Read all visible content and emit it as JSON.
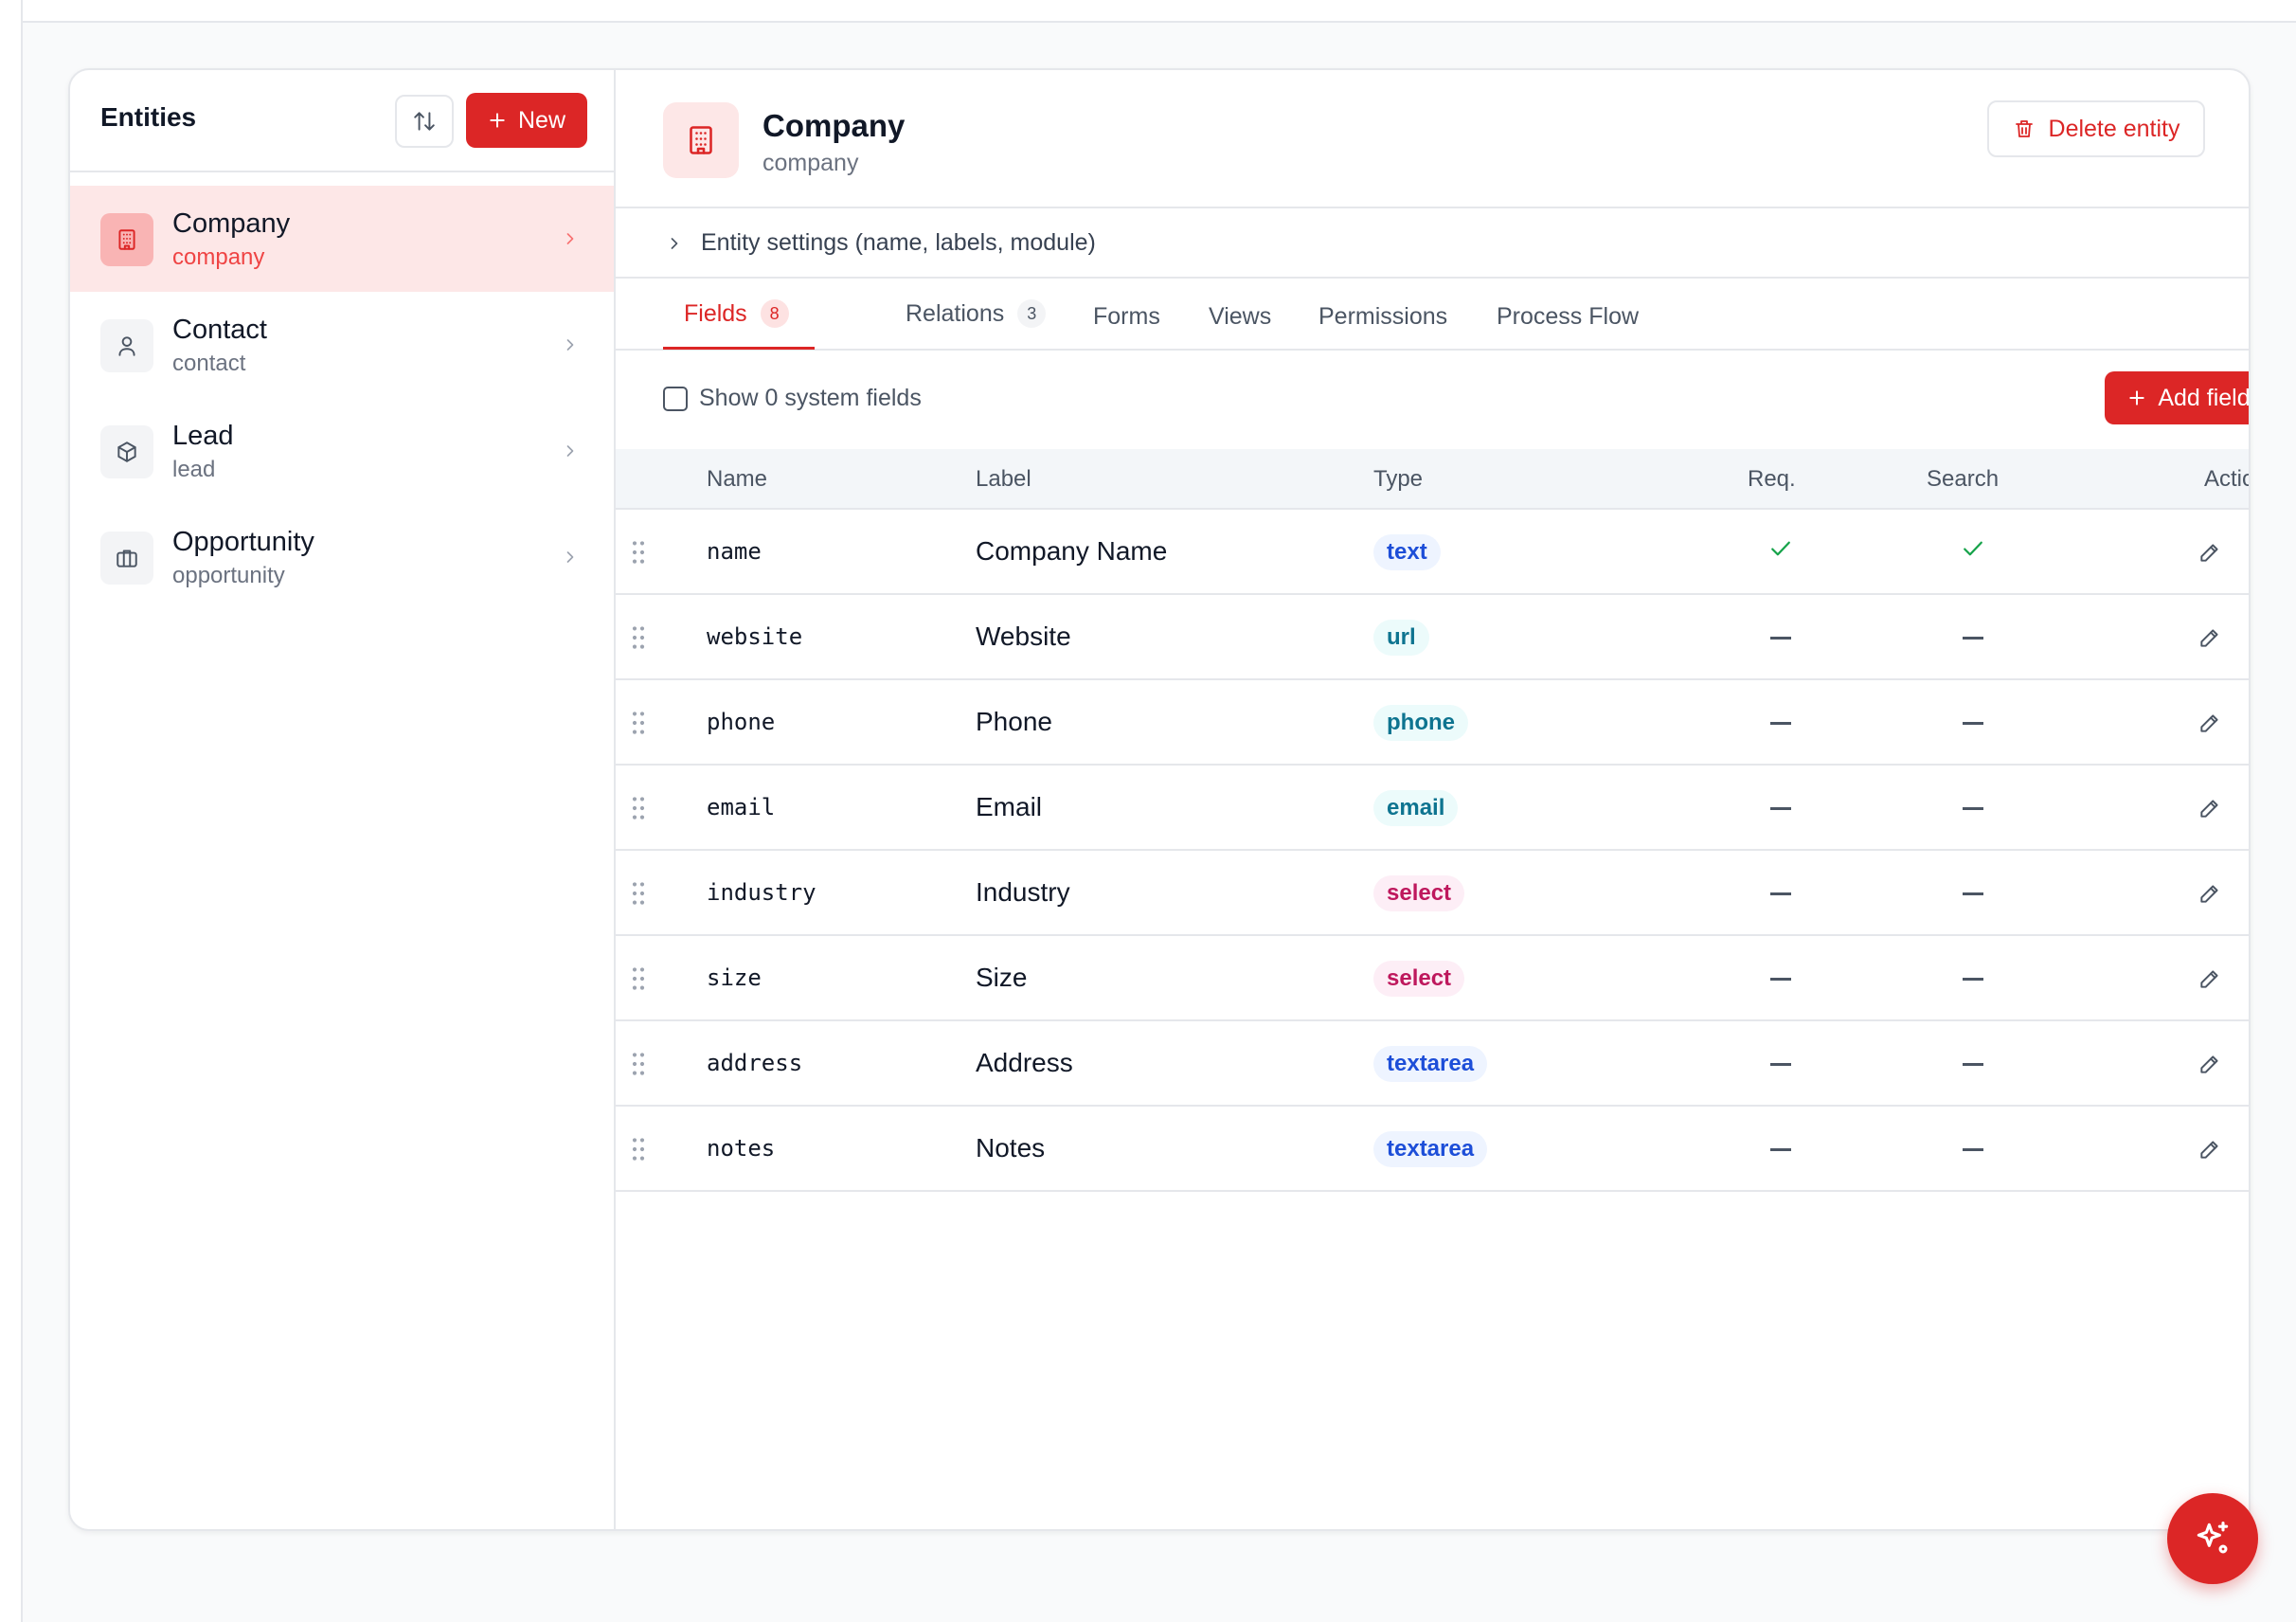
{
  "sidebar": {
    "title": "Entities",
    "new_label": "New",
    "items": [
      {
        "name": "Company",
        "slug": "company",
        "icon": "building-icon",
        "active": true
      },
      {
        "name": "Contact",
        "slug": "contact",
        "icon": "user-icon",
        "active": false
      },
      {
        "name": "Lead",
        "slug": "lead",
        "icon": "cube-icon",
        "active": false
      },
      {
        "name": "Opportunity",
        "slug": "opportunity",
        "icon": "briefcase-icon",
        "active": false
      }
    ]
  },
  "entity": {
    "title": "Company",
    "slug": "company",
    "delete_label": "Delete entity",
    "settings_label": "Entity settings (name, labels, module)"
  },
  "tabs": [
    {
      "label": "Fields",
      "badge": "8",
      "active": true
    },
    {
      "label": "Relations",
      "badge": "3",
      "active": false
    },
    {
      "label": "Forms",
      "badge": null,
      "active": false
    },
    {
      "label": "Views",
      "badge": null,
      "active": false
    },
    {
      "label": "Permissions",
      "badge": null,
      "active": false
    },
    {
      "label": "Process Flow",
      "badge": null,
      "active": false
    }
  ],
  "toolbar": {
    "show_system_label": "Show 0 system fields",
    "show_system_checked": false,
    "add_field_label": "Add field"
  },
  "table": {
    "headers": {
      "name": "Name",
      "label": "Label",
      "type": "Type",
      "req": "Req.",
      "search": "Search",
      "actions": "Actions"
    },
    "rows": [
      {
        "name": "name",
        "label": "Company Name",
        "type": "text",
        "req": true,
        "search": true
      },
      {
        "name": "website",
        "label": "Website",
        "type": "url",
        "req": false,
        "search": false
      },
      {
        "name": "phone",
        "label": "Phone",
        "type": "phone",
        "req": false,
        "search": false
      },
      {
        "name": "email",
        "label": "Email",
        "type": "email",
        "req": false,
        "search": false
      },
      {
        "name": "industry",
        "label": "Industry",
        "type": "select",
        "req": false,
        "search": false
      },
      {
        "name": "size",
        "label": "Size",
        "type": "select",
        "req": false,
        "search": false
      },
      {
        "name": "address",
        "label": "Address",
        "type": "textarea",
        "req": false,
        "search": false
      },
      {
        "name": "notes",
        "label": "Notes",
        "type": "textarea",
        "req": false,
        "search": false
      }
    ]
  },
  "colors": {
    "accent": "#dc2626",
    "check": "#16a34a"
  }
}
